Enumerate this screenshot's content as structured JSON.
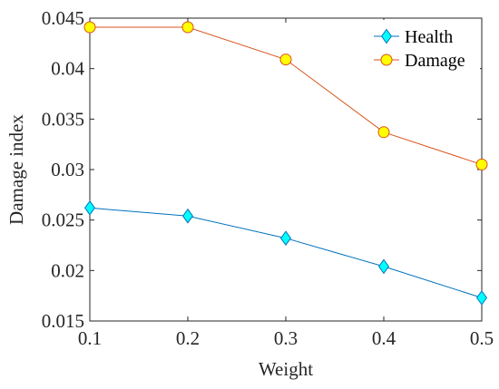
{
  "chart_data": {
    "type": "line",
    "x": [
      0.1,
      0.2,
      0.3,
      0.4,
      0.5
    ],
    "xlim": [
      0.1,
      0.5
    ],
    "ylim": [
      0.015,
      0.045
    ],
    "xticks": [
      "0.1",
      "0.2",
      "0.3",
      "0.4",
      "0.5"
    ],
    "yticks": [
      "0.015",
      "0.02",
      "0.025",
      "0.03",
      "0.035",
      "0.04",
      "0.045"
    ],
    "xlabel": "Weight",
    "ylabel": "Damage index",
    "grid": false,
    "legend_position": "top-right",
    "series": [
      {
        "name": "Health",
        "marker": "diamond",
        "line_color": "#0072BD",
        "marker_fill": "#00FFFF",
        "values": [
          0.0262,
          0.0254,
          0.0232,
          0.0204,
          0.0173
        ]
      },
      {
        "name": "Damage",
        "marker": "circle",
        "line_color": "#D95319",
        "marker_fill": "#FFFF00",
        "values": [
          0.0441,
          0.0441,
          0.0409,
          0.0337,
          0.0305
        ]
      }
    ]
  }
}
